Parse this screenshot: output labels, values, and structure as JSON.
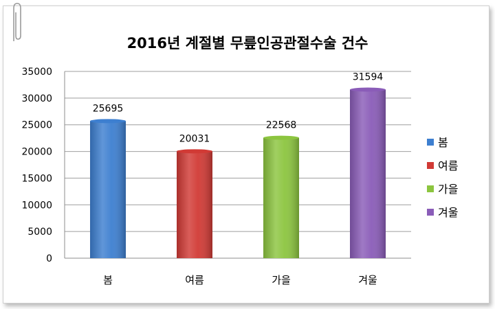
{
  "chart_data": {
    "type": "bar",
    "title": "2016년 계절별 무릎인공관절수술 건수",
    "categories": [
      "봄",
      "여름",
      "가을",
      "겨울"
    ],
    "values": [
      25695,
      20031,
      22568,
      31594
    ],
    "colors": [
      "#3d7fd0",
      "#d13a35",
      "#8cc53f",
      "#8a5cb8"
    ],
    "ylim": [
      0,
      35000
    ],
    "yticks": [
      "0",
      "5000",
      "10000",
      "15000",
      "20000",
      "25000",
      "30000",
      "35000"
    ],
    "grid": true,
    "legend_position": "right",
    "legend": [
      "봄",
      "여름",
      "가을",
      "겨울"
    ]
  }
}
